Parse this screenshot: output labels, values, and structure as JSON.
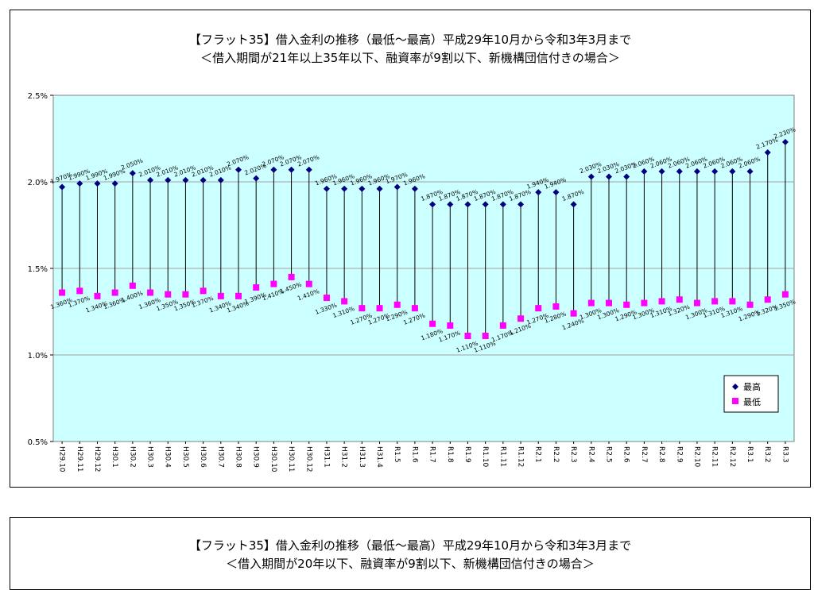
{
  "chart_data": [
    {
      "type": "scatter",
      "title": "【フラット35】借入金利の推移（最低～最高）平成29年10月から令和3年3月まで",
      "subtitle": "＜借入期間が21年以上35年以下、融資率が9割以下、新機構団信付きの場合＞",
      "ylim": [
        0.5,
        2.5
      ],
      "yticks": [
        "0.5%",
        "1.0%",
        "1.5%",
        "2.0%",
        "2.5%"
      ],
      "ytick_values": [
        0.5,
        1.0,
        1.5,
        2.0,
        2.5
      ],
      "grid": true,
      "legend_position": "bottom-right",
      "categories": [
        "H29.10",
        "H29.11",
        "H29.12",
        "H30.1",
        "H30.2",
        "H30.3",
        "H30.4",
        "H30.5",
        "H30.6",
        "H30.7",
        "H30.8",
        "H30.9",
        "H30.10",
        "H30.11",
        "H30.12",
        "H31.1",
        "H31.2",
        "H31.3",
        "H31.4",
        "R1.5",
        "R1.6",
        "R1.7",
        "R1.8",
        "R1.9",
        "R1.10",
        "R1.11",
        "R1.12",
        "R2.1",
        "R2.2",
        "R2.3",
        "R2.4",
        "R2.5",
        "R2.6",
        "R2.7",
        "R2.8",
        "R2.9",
        "R2.10",
        "R2.11",
        "R2.12",
        "R3.1",
        "R3.2",
        "R3.3"
      ],
      "series": [
        {
          "name": "最高",
          "color": "#000080",
          "marker": "diamond",
          "values": [
            1.97,
            1.99,
            1.99,
            1.99,
            2.05,
            2.01,
            2.01,
            2.01,
            2.01,
            2.01,
            2.07,
            2.02,
            2.07,
            2.07,
            2.07,
            1.96,
            1.96,
            1.96,
            1.96,
            1.97,
            1.96,
            1.87,
            1.87,
            1.87,
            1.87,
            1.87,
            1.87,
            1.94,
            1.94,
            1.87,
            2.03,
            2.03,
            2.03,
            2.06,
            2.06,
            2.06,
            2.06,
            2.06,
            2.06,
            2.06,
            2.17,
            2.23
          ],
          "labels": [
            "1.970%",
            "1.990%",
            "1.990%",
            "1.990%",
            "2.050%",
            "2.010%",
            "2.010%",
            "2.010%",
            "2.010%",
            "2.010%",
            "2.070%",
            "2.020%",
            "2.070%",
            "2.070%",
            "2.070%",
            "1.960%",
            "1.960%",
            "1.960%",
            "1.960%",
            "1.970%",
            "1.960%",
            "1.870%",
            "1.870%",
            "1.870%",
            "1.870%",
            "1.870%",
            "1.870%",
            "1.940%",
            "1.940%",
            "1.870%",
            "2.030%",
            "2.030%",
            "2.030%",
            "2.060%",
            "2.060%",
            "2.060%",
            "2.060%",
            "2.060%",
            "2.060%",
            "2.060%",
            "2.170%",
            "2.230%"
          ]
        },
        {
          "name": "最低",
          "color": "#ff00ff",
          "marker": "square",
          "values": [
            1.36,
            1.37,
            1.34,
            1.36,
            1.4,
            1.36,
            1.35,
            1.35,
            1.37,
            1.34,
            1.34,
            1.39,
            1.41,
            1.45,
            1.41,
            1.33,
            1.31,
            1.27,
            1.27,
            1.29,
            1.27,
            1.18,
            1.17,
            1.11,
            1.11,
            1.17,
            1.21,
            1.27,
            1.28,
            1.24,
            1.3,
            1.3,
            1.29,
            1.3,
            1.31,
            1.32,
            1.3,
            1.31,
            1.31,
            1.29,
            1.32,
            1.35
          ],
          "labels": [
            "1.360%",
            "1.370%",
            "1.340%",
            "1.360%",
            "1.400%",
            "1.360%",
            "1.350%",
            "1.350%",
            "1.370%",
            "1.340%",
            "1.340%",
            "1.390%",
            "1.410%",
            "1.450%",
            "1.410%",
            "1.330%",
            "1.310%",
            "1.270%",
            "1.270%",
            "1.290%",
            "1.270%",
            "1.180%",
            "1.170%",
            "1.110%",
            "1.110%",
            "1.170%",
            "1.210%",
            "1.270%",
            "1.280%",
            "1.240%",
            "1.300%",
            "1.300%",
            "1.290%",
            "1.300%",
            "1.310%",
            "1.320%",
            "1.300%",
            "1.310%",
            "1.310%",
            "1.290%",
            "1.320%",
            "1.350%"
          ]
        }
      ]
    },
    {
      "type": "scatter",
      "title": "【フラット35】借入金利の推移（最低～最高）平成29年10月から令和3年3月まで",
      "subtitle": "＜借入期間が20年以下、融資率が9割以下、新機構団信付きの場合＞"
    }
  ]
}
